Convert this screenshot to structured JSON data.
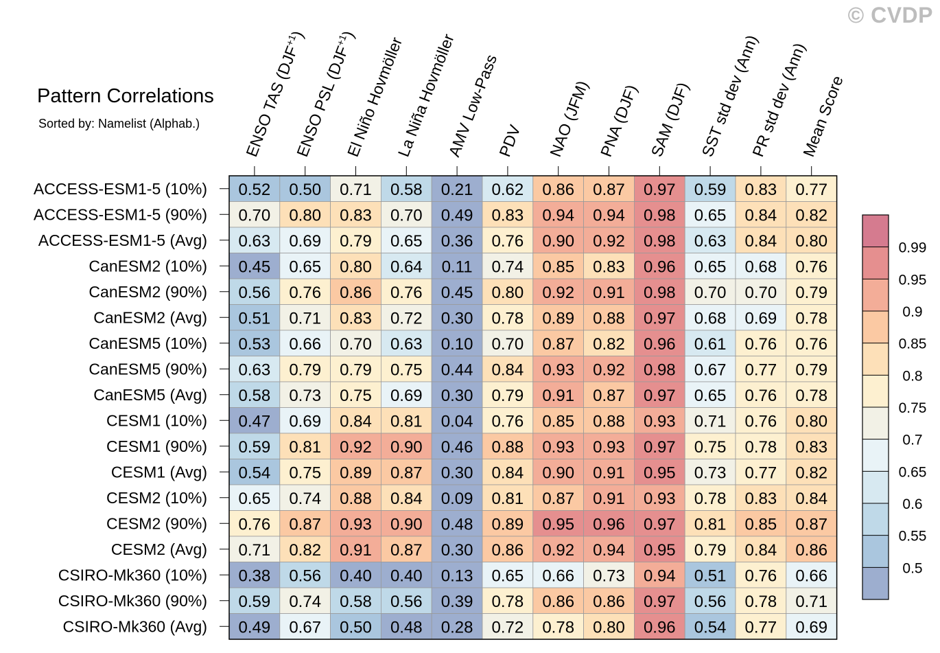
{
  "watermark": "© CVDP",
  "chart_data": {
    "type": "heatmap",
    "title": "Pattern Correlations",
    "subtitle": "Sorted by: Namelist (Alphab.)",
    "columns": [
      "ENSO TAS (DJF+1)",
      "ENSO PSL (DJF+1)",
      "El Niño Hovmöller",
      "La Niña Hovmöller",
      "AMV Low-Pass",
      "PDV",
      "NAO (JFM)",
      "PNA (DJF)",
      "SAM (DJF)",
      "SST std dev (Ann)",
      "PR std dev (Ann)",
      "Mean Score"
    ],
    "rows": [
      "ACCESS-ESM1-5 (10%)",
      "ACCESS-ESM1-5 (90%)",
      "ACCESS-ESM1-5 (Avg)",
      "CanESM2 (10%)",
      "CanESM2 (90%)",
      "CanESM2 (Avg)",
      "CanESM5 (10%)",
      "CanESM5 (90%)",
      "CanESM5 (Avg)",
      "CESM1 (10%)",
      "CESM1 (90%)",
      "CESM1 (Avg)",
      "CESM2 (10%)",
      "CESM2 (90%)",
      "CESM2 (Avg)",
      "CSIRO-Mk360 (10%)",
      "CSIRO-Mk360 (90%)",
      "CSIRO-Mk360 (Avg)"
    ],
    "values": [
      [
        "0.52",
        "0.50",
        "0.71",
        "0.58",
        "0.21",
        "0.62",
        "0.86",
        "0.87",
        "0.97",
        "0.59",
        "0.83",
        "0.77"
      ],
      [
        "0.70",
        "0.80",
        "0.83",
        "0.70",
        "0.49",
        "0.83",
        "0.94",
        "0.94",
        "0.98",
        "0.65",
        "0.84",
        "0.82"
      ],
      [
        "0.63",
        "0.69",
        "0.79",
        "0.65",
        "0.36",
        "0.76",
        "0.90",
        "0.92",
        "0.98",
        "0.63",
        "0.84",
        "0.80"
      ],
      [
        "0.45",
        "0.65",
        "0.80",
        "0.64",
        "0.11",
        "0.74",
        "0.85",
        "0.83",
        "0.96",
        "0.65",
        "0.68",
        "0.76"
      ],
      [
        "0.56",
        "0.76",
        "0.86",
        "0.76",
        "0.45",
        "0.80",
        "0.92",
        "0.91",
        "0.98",
        "0.70",
        "0.70",
        "0.79"
      ],
      [
        "0.51",
        "0.71",
        "0.83",
        "0.72",
        "0.30",
        "0.78",
        "0.89",
        "0.88",
        "0.97",
        "0.68",
        "0.69",
        "0.78"
      ],
      [
        "0.53",
        "0.66",
        "0.70",
        "0.63",
        "0.10",
        "0.70",
        "0.87",
        "0.82",
        "0.96",
        "0.61",
        "0.76",
        "0.76"
      ],
      [
        "0.63",
        "0.79",
        "0.79",
        "0.75",
        "0.44",
        "0.84",
        "0.93",
        "0.92",
        "0.98",
        "0.67",
        "0.77",
        "0.79"
      ],
      [
        "0.58",
        "0.73",
        "0.75",
        "0.69",
        "0.30",
        "0.79",
        "0.91",
        "0.87",
        "0.97",
        "0.65",
        "0.76",
        "0.78"
      ],
      [
        "0.47",
        "0.69",
        "0.84",
        "0.81",
        "0.04",
        "0.76",
        "0.85",
        "0.88",
        "0.93",
        "0.71",
        "0.76",
        "0.80"
      ],
      [
        "0.59",
        "0.81",
        "0.92",
        "0.90",
        "0.46",
        "0.88",
        "0.93",
        "0.93",
        "0.97",
        "0.75",
        "0.78",
        "0.83"
      ],
      [
        "0.54",
        "0.75",
        "0.89",
        "0.87",
        "0.30",
        "0.84",
        "0.90",
        "0.91",
        "0.95",
        "0.73",
        "0.77",
        "0.82"
      ],
      [
        "0.65",
        "0.74",
        "0.88",
        "0.84",
        "0.09",
        "0.81",
        "0.87",
        "0.91",
        "0.93",
        "0.78",
        "0.83",
        "0.84"
      ],
      [
        "0.76",
        "0.87",
        "0.93",
        "0.90",
        "0.48",
        "0.89",
        "0.95",
        "0.96",
        "0.97",
        "0.81",
        "0.85",
        "0.87"
      ],
      [
        "0.71",
        "0.82",
        "0.91",
        "0.87",
        "0.30",
        "0.86",
        "0.92",
        "0.94",
        "0.95",
        "0.79",
        "0.84",
        "0.86"
      ],
      [
        "0.38",
        "0.56",
        "0.40",
        "0.40",
        "0.13",
        "0.65",
        "0.66",
        "0.73",
        "0.94",
        "0.51",
        "0.76",
        "0.66"
      ],
      [
        "0.59",
        "0.74",
        "0.58",
        "0.56",
        "0.39",
        "0.78",
        "0.86",
        "0.86",
        "0.97",
        "0.56",
        "0.78",
        "0.71"
      ],
      [
        "0.49",
        "0.67",
        "0.50",
        "0.48",
        "0.28",
        "0.72",
        "0.78",
        "0.80",
        "0.96",
        "0.54",
        "0.77",
        "0.69"
      ]
    ],
    "colorbar": {
      "labels": [
        "0.99",
        "0.95",
        "0.9",
        "0.85",
        "0.8",
        "0.75",
        "0.7",
        "0.65",
        "0.6",
        "0.55",
        "0.5"
      ],
      "thresholds": [
        0.5,
        0.55,
        0.6,
        0.65,
        0.7,
        0.75,
        0.8,
        0.85,
        0.9,
        0.95,
        0.99
      ],
      "colors": [
        "#9daecf",
        "#aac6de",
        "#bfd9e8",
        "#d7e9f1",
        "#e9f3f7",
        "#f2f1e6",
        "#fdf0d0",
        "#fde0b8",
        "#fbc9a3",
        "#f3ad98",
        "#e58f8f",
        "#d57b8f"
      ]
    }
  }
}
